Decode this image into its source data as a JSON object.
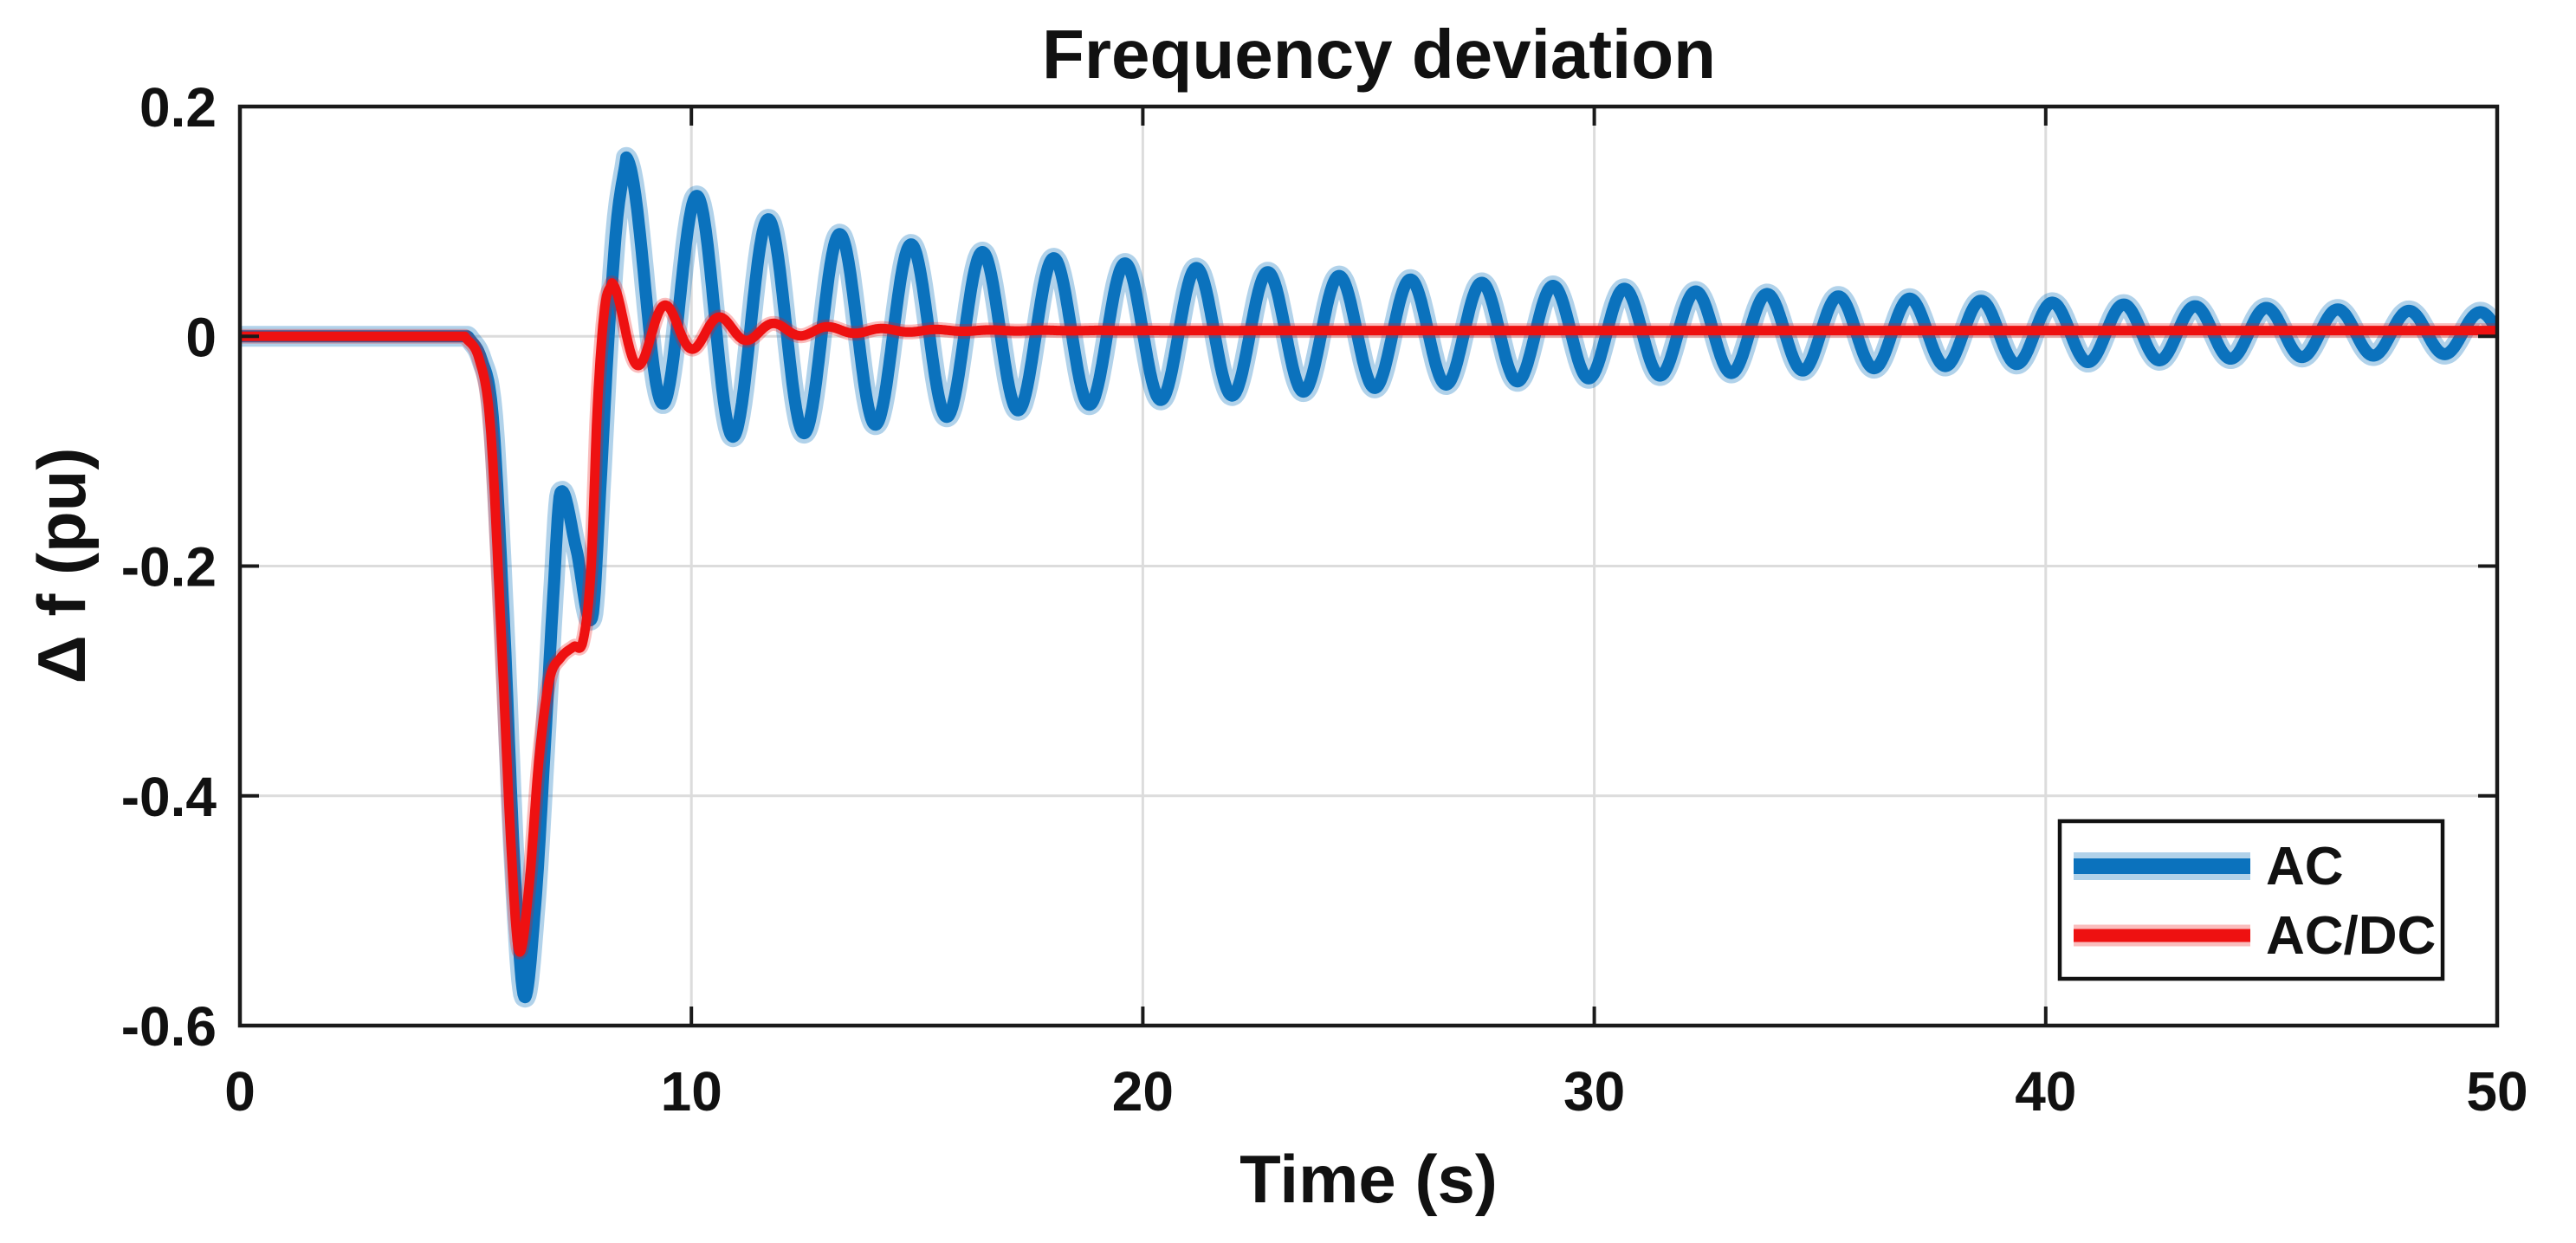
{
  "figure": {
    "title": "Frequency deviation",
    "xlabel": "Time (s)",
    "ylabel": "Δ f (pu)",
    "background": "#ffffff",
    "axis_color": "#1a1a1a",
    "grid_color": "#dcdcdc"
  },
  "legend": {
    "position": "bottom-right",
    "items": [
      {
        "label": "AC",
        "color": "#0b72bd",
        "halo_opacity": 0.32,
        "core_width": 14,
        "halo_width": 24
      },
      {
        "label": "AC/DC",
        "color": "#ee1111",
        "halo_opacity": 0.28,
        "core_width": 11,
        "halo_width": 17
      }
    ]
  },
  "chart_data": {
    "type": "line",
    "title": "Frequency deviation",
    "xlabel": "Time (s)",
    "ylabel": "Δ f (pu)",
    "xlim": [
      0,
      50
    ],
    "ylim": [
      -0.6,
      0.2
    ],
    "xticks": [
      0,
      10,
      20,
      30,
      40,
      50
    ],
    "yticks": [
      0.2,
      0,
      -0.2,
      -0.4,
      -0.6
    ],
    "xtick_labels": [
      "0",
      "10",
      "20",
      "30",
      "40",
      "50"
    ],
    "ytick_labels": [
      "0.2",
      "0",
      "-0.2",
      "-0.4",
      "-0.6"
    ],
    "grid": true,
    "legend_position": "bottom-right",
    "series": [
      {
        "name": "AC",
        "color": "#0b72bd",
        "core_width": 14,
        "halo_width": 24,
        "halo_opacity": 0.32,
        "flat_value": 0,
        "flat_until": 5.05,
        "transient_points": [
          [
            5.05,
            0
          ],
          [
            5.35,
            -0.02
          ],
          [
            5.6,
            -0.07
          ],
          [
            5.85,
            -0.25
          ],
          [
            6.08,
            -0.46
          ],
          [
            6.3,
            -0.575
          ],
          [
            6.55,
            -0.49
          ],
          [
            6.75,
            -0.36
          ],
          [
            6.95,
            -0.22
          ],
          [
            7.1,
            -0.136
          ],
          [
            7.45,
            -0.185
          ],
          [
            7.8,
            -0.245
          ],
          [
            8.0,
            -0.12
          ],
          [
            8.15,
            -0.01
          ],
          [
            8.35,
            0.1
          ],
          [
            8.55,
            0.153
          ]
        ],
        "oscillation": {
          "t0": 8.55,
          "period": 1.58,
          "baseline": 0.003,
          "envelope": [
            {
              "a": 0.06,
              "tau": 2.5
            },
            {
              "a": 0.093,
              "tau": 25
            }
          ],
          "skew_tau": 1.3
        },
        "notes": "drops at t=5 to min -0.575 at t=6.3, local max -0.136 at t=7.1, overshoot +0.153 at t=8.55, then damped ~0.63 Hz oscillation decaying to ±0.018 at t=50"
      },
      {
        "name": "AC/DC",
        "color": "#ee1111",
        "core_width": 11,
        "halo_width": 17,
        "halo_opacity": 0.28,
        "flat_value": 0,
        "flat_until": 4.98,
        "transient_points": [
          [
            4.98,
            0
          ],
          [
            5.3,
            -0.02
          ],
          [
            5.55,
            -0.08
          ],
          [
            5.8,
            -0.27
          ],
          [
            6.0,
            -0.44
          ],
          [
            6.18,
            -0.535
          ],
          [
            6.4,
            -0.48
          ],
          [
            6.62,
            -0.37
          ],
          [
            6.85,
            -0.3
          ],
          [
            7.1,
            -0.28
          ],
          [
            7.4,
            -0.27
          ],
          [
            7.6,
            -0.265
          ],
          [
            7.78,
            -0.2
          ],
          [
            7.92,
            -0.06
          ],
          [
            8.08,
            0.025
          ],
          [
            8.24,
            0.0465
          ]
        ],
        "oscillation": {
          "t0": 8.24,
          "period": 1.2,
          "amp": 0.0415,
          "tau": 1.9,
          "offset": 0.005
        },
        "notes": "drops at t=5 to min -0.535 at t=6.18, shoulder near -0.27, peak +0.046 at t=8.24, small ripples decay, settles at +0.005"
      }
    ]
  }
}
